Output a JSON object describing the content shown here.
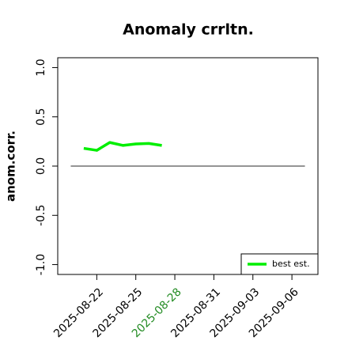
{
  "chart_data": {
    "type": "line",
    "title": "Anomaly crrltn.",
    "y_label": "anom.corr.",
    "x": [
      "2025-08-21",
      "2025-08-22",
      "2025-08-23",
      "2025-08-24",
      "2025-08-25",
      "2025-08-26",
      "2025-08-27"
    ],
    "series": [
      {
        "name": "best est.",
        "color": "#00ee00",
        "values": [
          0.18,
          0.16,
          0.24,
          0.21,
          0.225,
          0.23,
          0.21
        ]
      }
    ],
    "xlim": [
      "2025-08-19",
      "2025-09-08"
    ],
    "xticks": [
      "2025-08-22",
      "2025-08-25",
      "2025-08-28",
      "2025-08-31",
      "2025-09-03",
      "2025-09-06"
    ],
    "xtick_colors": [
      "#000000",
      "#000000",
      "#228b22",
      "#000000",
      "#000000",
      "#000000"
    ],
    "ylim": [
      -1.1,
      1.1
    ],
    "yticks": [
      {
        "value": -1,
        "label": "-1.0"
      },
      -0.5,
      {
        "value": 0,
        "label": "0.0"
      },
      0.5,
      {
        "value": 1,
        "label": "1.0"
      }
    ],
    "reference_line": {
      "value": 0,
      "from": "2025-08-20",
      "to": "2025-09-07",
      "color": "#555555"
    },
    "legend": "bottomright"
  }
}
